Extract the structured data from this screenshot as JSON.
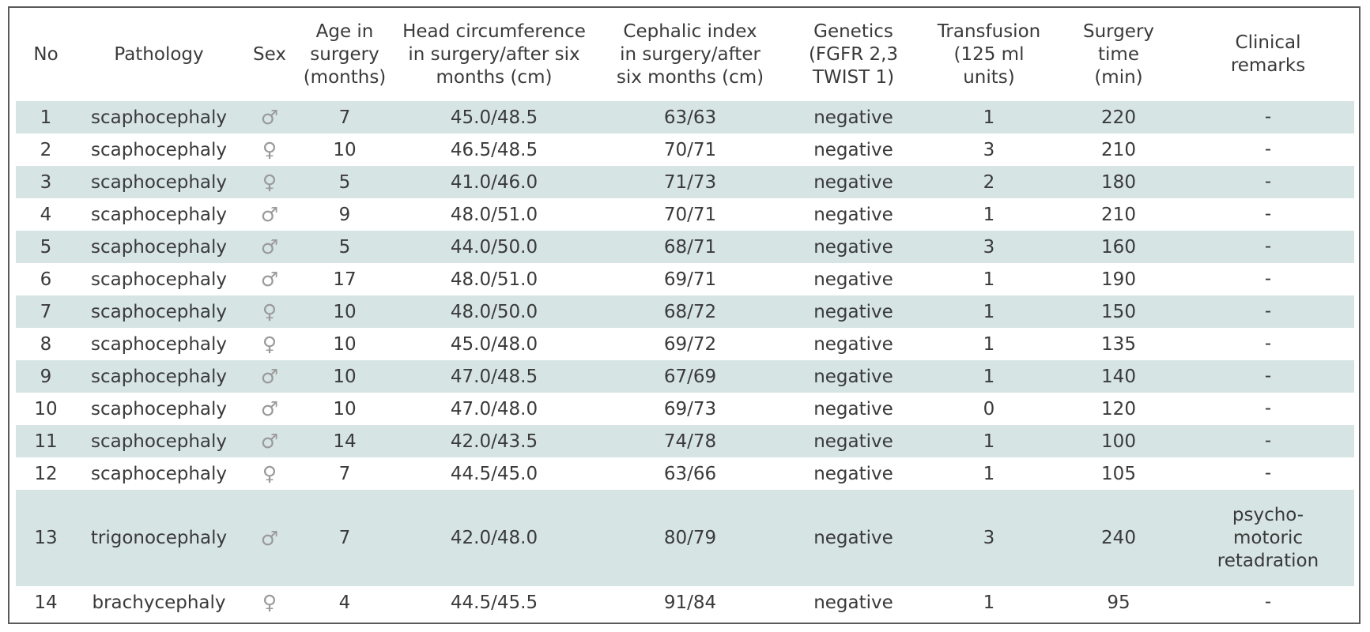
{
  "table": {
    "headers": [
      [
        "No"
      ],
      [
        "Pathology"
      ],
      [
        "Sex"
      ],
      [
        "Age in",
        "surgery",
        "(months)"
      ],
      [
        "Head circumference",
        "in surgery/after six",
        "months (cm)"
      ],
      [
        "Cephalic index",
        "in surgery/after",
        "six months (cm)"
      ],
      [
        "Genetics",
        "(FGFR 2,3",
        "TWIST 1)"
      ],
      [
        "Transfusion",
        "(125 ml",
        "units)"
      ],
      [
        "Surgery",
        "time",
        "(min)"
      ],
      [
        "Clinical",
        "remarks"
      ]
    ],
    "rows": [
      {
        "no": "1",
        "pathology": "scaphocephaly",
        "sex": "♂",
        "age": "7",
        "head": "45.0/48.5",
        "cephalic": "63/63",
        "genetics": "negative",
        "transfusion": "1",
        "time": "220",
        "remarks": [
          "-"
        ]
      },
      {
        "no": "2",
        "pathology": "scaphocephaly",
        "sex": "♀",
        "age": "10",
        "head": "46.5/48.5",
        "cephalic": "70/71",
        "genetics": "negative",
        "transfusion": "3",
        "time": "210",
        "remarks": [
          "-"
        ]
      },
      {
        "no": "3",
        "pathology": "scaphocephaly",
        "sex": "♀",
        "age": "5",
        "head": "41.0/46.0",
        "cephalic": "71/73",
        "genetics": "negative",
        "transfusion": "2",
        "time": "180",
        "remarks": [
          "-"
        ]
      },
      {
        "no": "4",
        "pathology": "scaphocephaly",
        "sex": "♂",
        "age": "9",
        "head": "48.0/51.0",
        "cephalic": "70/71",
        "genetics": "negative",
        "transfusion": "1",
        "time": "210",
        "remarks": [
          "-"
        ]
      },
      {
        "no": "5",
        "pathology": "scaphocephaly",
        "sex": "♂",
        "age": "5",
        "head": "44.0/50.0",
        "cephalic": "68/71",
        "genetics": "negative",
        "transfusion": "3",
        "time": "160",
        "remarks": [
          "-"
        ]
      },
      {
        "no": "6",
        "pathology": "scaphocephaly",
        "sex": "♂",
        "age": "17",
        "head": "48.0/51.0",
        "cephalic": "69/71",
        "genetics": "negative",
        "transfusion": "1",
        "time": "190",
        "remarks": [
          "-"
        ]
      },
      {
        "no": "7",
        "pathology": "scaphocephaly",
        "sex": "♀",
        "age": "10",
        "head": "48.0/50.0",
        "cephalic": "68/72",
        "genetics": "negative",
        "transfusion": "1",
        "time": "150",
        "remarks": [
          "-"
        ]
      },
      {
        "no": "8",
        "pathology": "scaphocephaly",
        "sex": "♀",
        "age": "10",
        "head": "45.0/48.0",
        "cephalic": "69/72",
        "genetics": "negative",
        "transfusion": "1",
        "time": "135",
        "remarks": [
          "-"
        ]
      },
      {
        "no": "9",
        "pathology": "scaphocephaly",
        "sex": "♂",
        "age": "10",
        "head": "47.0/48.5",
        "cephalic": "67/69",
        "genetics": "negative",
        "transfusion": "1",
        "time": "140",
        "remarks": [
          "-"
        ]
      },
      {
        "no": "10",
        "pathology": "scaphocephaly",
        "sex": "♂",
        "age": "10",
        "head": "47.0/48.0",
        "cephalic": "69/73",
        "genetics": "negative",
        "transfusion": "0",
        "time": "120",
        "remarks": [
          "-"
        ]
      },
      {
        "no": "11",
        "pathology": "scaphocephaly",
        "sex": "♂",
        "age": "14",
        "head": "42.0/43.5",
        "cephalic": "74/78",
        "genetics": "negative",
        "transfusion": "1",
        "time": "100",
        "remarks": [
          "-"
        ]
      },
      {
        "no": "12",
        "pathology": "scaphocephaly",
        "sex": "♀",
        "age": "7",
        "head": "44.5/45.0",
        "cephalic": "63/66",
        "genetics": "negative",
        "transfusion": "1",
        "time": "105",
        "remarks": [
          "-"
        ]
      },
      {
        "no": "13",
        "pathology": "trigonocephaly",
        "sex": "♂",
        "age": "7",
        "head": "42.0/48.0",
        "cephalic": "80/79",
        "genetics": "negative",
        "transfusion": "3",
        "time": "240",
        "remarks": [
          "psycho-",
          "motoric",
          "retadration"
        ]
      },
      {
        "no": "14",
        "pathology": "brachycephaly",
        "sex": "♀",
        "age": "4",
        "head": "44.5/45.5",
        "cephalic": "91/84",
        "genetics": "negative",
        "transfusion": "1",
        "time": "95",
        "remarks": [
          "-"
        ]
      }
    ]
  },
  "colors": {
    "row_shade": "#d7e4e4",
    "text": "#3a3a3a",
    "symbol": "#9a9a9a"
  }
}
